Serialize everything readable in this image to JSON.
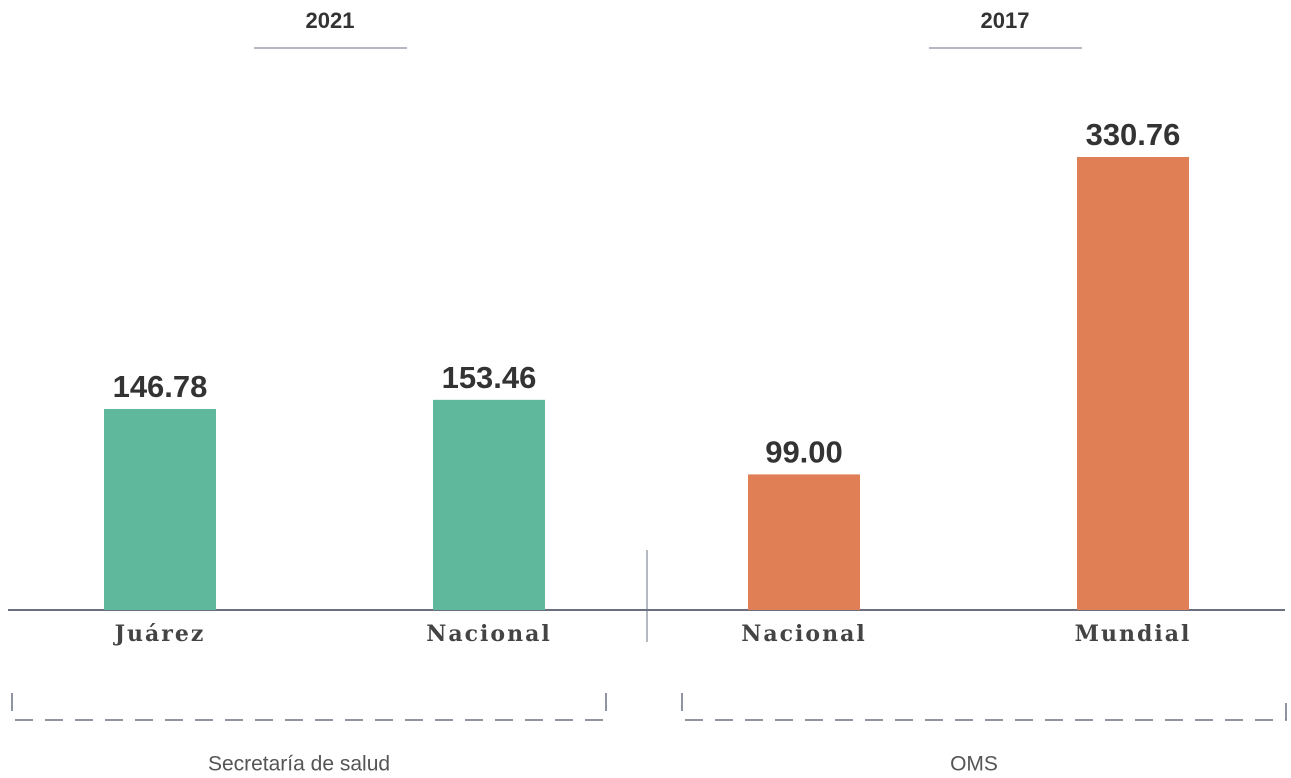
{
  "chart_data": {
    "type": "bar",
    "series": [
      {
        "name": "2021",
        "source": "Secretaría de salud",
        "color": "#5fb89b",
        "categories": [
          "Juárez",
          "Nacional"
        ],
        "values": [
          146.78,
          153.46
        ],
        "value_labels": [
          "146.78",
          "153.46"
        ]
      },
      {
        "name": "2017",
        "source": "OMS",
        "color": "#e07e56",
        "categories": [
          "Nacional",
          "Mundial"
        ],
        "values": [
          99,
          330.76
        ],
        "value_labels": [
          "99.00",
          "330.76"
        ]
      }
    ]
  }
}
